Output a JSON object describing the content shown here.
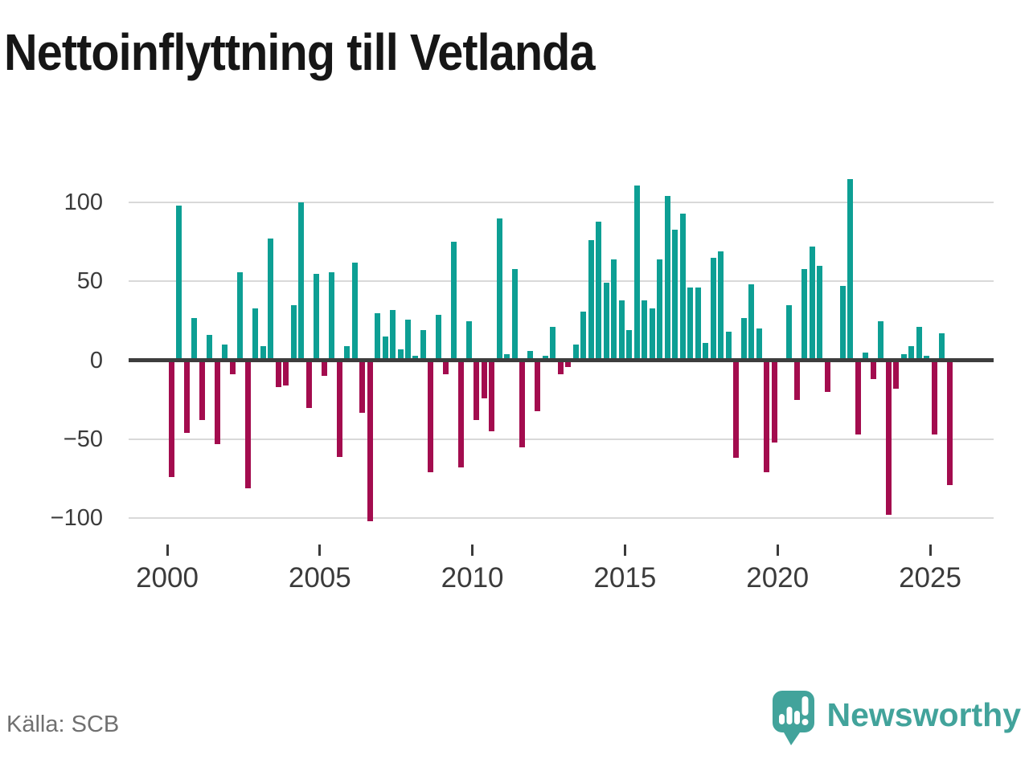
{
  "title": "Nettoinflyttning till Vetlanda",
  "source": "Källa: SCB",
  "logo": {
    "text": "Newsworthy",
    "icon": "newsworthy-bubble-chart-icon"
  },
  "colors": {
    "positive": "#0d9f94",
    "negative": "#a30c4e",
    "grid": "#d9d9d9",
    "zero_line": "#3d3d3d",
    "axis_text": "#3b3b3b",
    "title_text": "#161616",
    "source_text": "#707070",
    "logo_teal": "#42a39b"
  },
  "chart_data": {
    "type": "bar",
    "title": "Nettoinflyttning till Vetlanda",
    "frequency": "quarterly",
    "start_year": 2000,
    "start_quarter": 1,
    "ylim": [
      -115,
      120
    ],
    "grid": true,
    "y_ticks": [
      100,
      50,
      0,
      -50,
      -100
    ],
    "y_tick_labels": [
      "100",
      "50",
      "0",
      "−50",
      "−100"
    ],
    "x_ticks": [
      2000,
      2005,
      2010,
      2015,
      2020,
      2025
    ],
    "x_tick_labels": [
      "2000",
      "2005",
      "2010",
      "2015",
      "2020",
      "2025"
    ],
    "series": [
      {
        "name": "Nettoinflyttning",
        "values": [
          -74,
          98,
          -46,
          27,
          -38,
          16,
          -53,
          10,
          -9,
          56,
          -81,
          33,
          9,
          77,
          -17,
          -16,
          35,
          100,
          -30,
          55,
          -10,
          56,
          -61,
          9,
          62,
          -33,
          -102,
          30,
          15,
          32,
          7,
          26,
          3,
          19,
          -71,
          29,
          -9,
          75,
          -68,
          25,
          -38,
          -24,
          -45,
          90,
          4,
          58,
          -55,
          6,
          -32,
          3,
          21,
          -9,
          -4,
          10,
          31,
          76,
          88,
          49,
          64,
          38,
          19,
          111,
          38,
          33,
          64,
          104,
          83,
          93,
          46,
          46,
          11,
          65,
          69,
          18,
          -62,
          27,
          48,
          20,
          -71,
          -52,
          0,
          35,
          -25,
          58,
          72,
          60,
          -20,
          0,
          47,
          115,
          -47,
          5,
          -12,
          25,
          -98,
          -18,
          4,
          9,
          21,
          3,
          -47,
          17,
          -79
        ]
      }
    ]
  }
}
